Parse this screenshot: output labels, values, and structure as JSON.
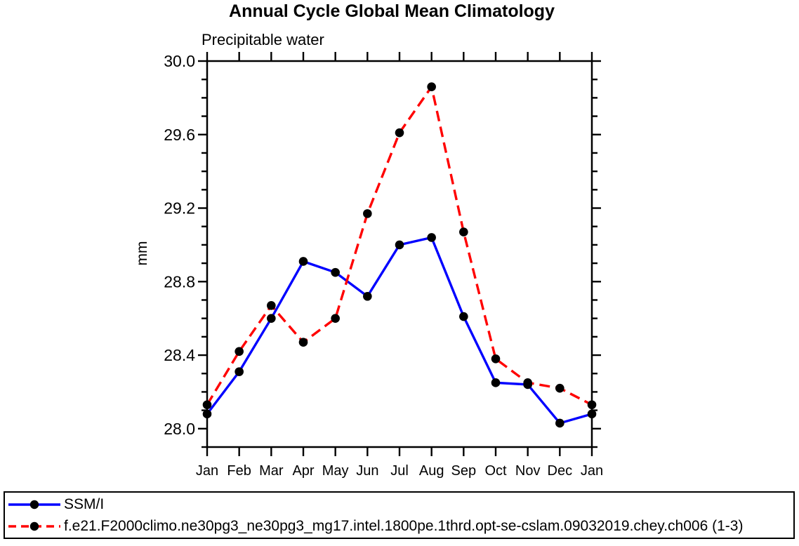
{
  "title": "Annual Cycle Global Mean Climatology",
  "subtitle": "Precipitable water",
  "ylabel": "mm",
  "colors": {
    "axis": "#000000",
    "marker": "#000000",
    "obs_line": "#0000ff",
    "model_line": "#ff0000",
    "background": "#ffffff"
  },
  "chart_data": {
    "type": "line",
    "title": "Annual Cycle Global Mean Climatology",
    "subtitle": "Precipitable water",
    "xlabel": "",
    "ylabel": "mm",
    "categories": [
      "Jan",
      "Feb",
      "Mar",
      "Apr",
      "May",
      "Jun",
      "Jul",
      "Aug",
      "Sep",
      "Oct",
      "Nov",
      "Dec",
      "Jan"
    ],
    "ylim": [
      27.9,
      30.0
    ],
    "y_major_ticks": [
      28.0,
      28.4,
      28.8,
      29.2,
      29.6,
      30.0
    ],
    "y_minor_step": 0.1,
    "grid": false,
    "legend_position": "bottom",
    "marker": "filled-circle",
    "marker_color": "#000000",
    "series": [
      {
        "name": "SSM/I",
        "color": "#0000ff",
        "line_style": "solid",
        "values": [
          28.08,
          28.31,
          28.6,
          28.91,
          28.85,
          28.72,
          29.0,
          29.04,
          28.61,
          28.25,
          28.24,
          28.03,
          28.08
        ]
      },
      {
        "name": "f.e21.F2000climo.ne30pg3_ne30pg3_mg17.intel.1800pe.1thrd.opt-se-cslam.09032019.chey.ch006 (1-3)",
        "color": "#ff0000",
        "line_style": "dashed",
        "values": [
          28.13,
          28.42,
          28.67,
          28.47,
          28.6,
          29.17,
          29.61,
          29.86,
          29.07,
          28.38,
          28.25,
          28.22,
          28.13
        ]
      }
    ]
  }
}
